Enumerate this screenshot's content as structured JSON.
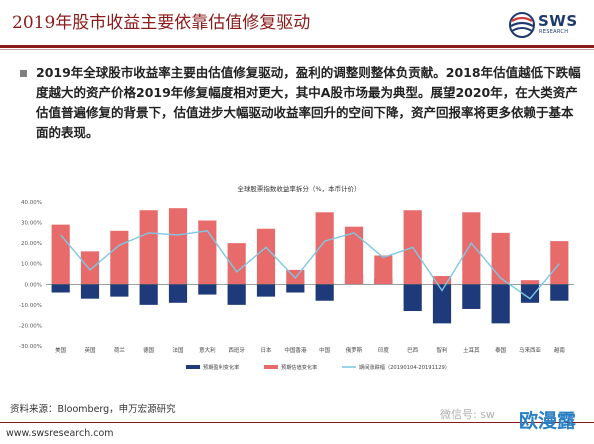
{
  "header": {
    "title": "2019年股市收益主要依靠估值修复驱动",
    "logo_name": "SWS",
    "logo_subtitle": "RESEARCH",
    "logo_icon": "globe-icon"
  },
  "body": {
    "paragraph": "2019年全球股市收益率主要由估值修复驱动，盈利的调整则整体负贡献。2018年估值越低下跌幅度越大的资产价格2019年修复幅度相对更大，其中A股市场最为典型。展望2020年，在大类资产估值普遍修复的背景下，估值进步大幅驱动收益率回升的空间下降，资产回报率将更多依赖于基本面的表现。"
  },
  "chart_data": {
    "type": "bar",
    "title": "全球股票指数收益率拆分（%，本币计价）",
    "categories": [
      "美国",
      "英国",
      "荷兰",
      "德国",
      "法国",
      "意大利",
      "西班牙",
      "日本",
      "中国香港",
      "中国",
      "俄罗斯",
      "印度",
      "巴西",
      "智利",
      "土耳其",
      "泰国",
      "马来西亚",
      "越南"
    ],
    "series": [
      {
        "name": "预期盈利变化率",
        "kind": "bar",
        "color": "#1f3a7a",
        "values": [
          -4,
          -7,
          -6,
          -10,
          -9,
          -5,
          -10,
          -6,
          -4,
          -8,
          5,
          3,
          -13,
          -19,
          -12,
          -19,
          -9,
          -8
        ]
      },
      {
        "name": "预期估值变化率",
        "kind": "bar",
        "color": "#e86b6b",
        "values": [
          29,
          16,
          26,
          36,
          37,
          31,
          20,
          27,
          7,
          35,
          28,
          14,
          36,
          4,
          35,
          25,
          2,
          21
        ]
      },
      {
        "name": "期间涨跌幅（20190104-20191129）",
        "kind": "line",
        "color": "#7ec8e3",
        "values": [
          24,
          7,
          19,
          25,
          24,
          26,
          6,
          18,
          3,
          21,
          25,
          13,
          18,
          -3,
          20,
          3,
          -7,
          10
        ]
      }
    ],
    "ylim": [
      -30,
      40
    ],
    "yticks": [
      "40.00%",
      "30.00%",
      "20.00%",
      "10.00%",
      "0.00%",
      "-10.00%",
      "-20.00%",
      "-30.00%"
    ],
    "legend_position": "bottom",
    "grid": false
  },
  "footer": {
    "source": "资料来源：Bloomberg，申万宏源研究",
    "url": "www.swsresearch.com",
    "wechat": "微信号: sw",
    "brand": "欧漫露"
  }
}
